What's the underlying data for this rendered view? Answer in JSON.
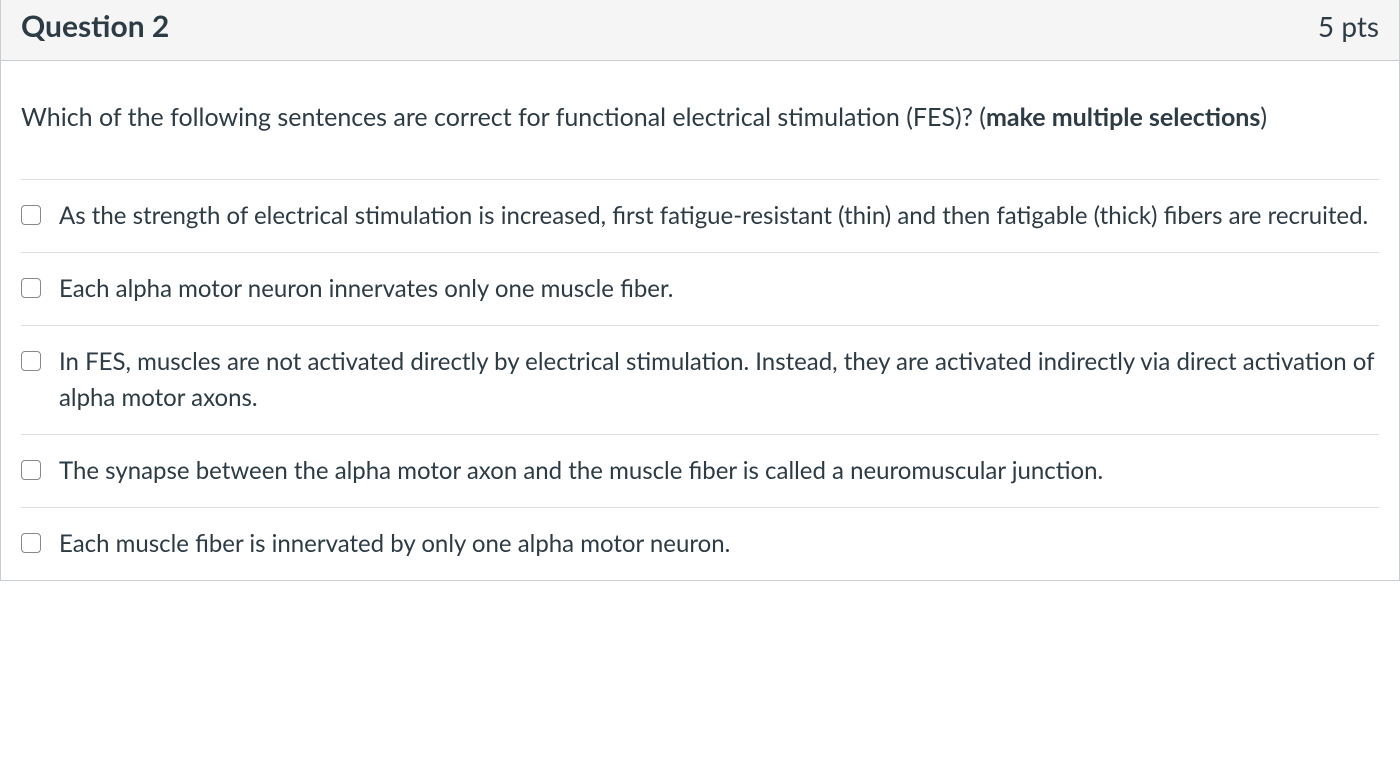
{
  "question": {
    "header": {
      "title": "Question 2",
      "points": "5 pts"
    },
    "prompt": {
      "text_prefix": "Which of the following sentences are correct for functional electrical stimulation (FES)? (",
      "text_bold": "make multiple selections",
      "text_suffix": ")"
    },
    "answers": [
      {
        "text": "As the strength of electrical stimulation is increased, first fatigue-resistant (thin) and then fatigable (thick) fibers are recruited.",
        "checked": false
      },
      {
        "text": "Each alpha motor neuron innervates only one muscle fiber.",
        "checked": false
      },
      {
        "text": "In FES, muscles are not activated directly by electrical stimulation. Instead, they are activated indirectly via direct activation of alpha motor axons.",
        "checked": false
      },
      {
        "text": "The synapse between the alpha motor axon and the muscle fiber is called a neuromuscular junction.",
        "checked": false
      },
      {
        "text": "Each muscle fiber is innervated by only one alpha motor neuron.",
        "checked": false
      }
    ]
  },
  "colors": {
    "header_bg": "#f5f5f5",
    "border": "#c7cdd1",
    "divider": "#dddddd",
    "text": "#2d3b45",
    "checkbox_border": "#888888",
    "background": "#ffffff"
  },
  "typography": {
    "title_fontsize": 30,
    "title_weight": 700,
    "points_fontsize": 28,
    "body_fontsize": 25,
    "answer_fontsize": 24
  }
}
